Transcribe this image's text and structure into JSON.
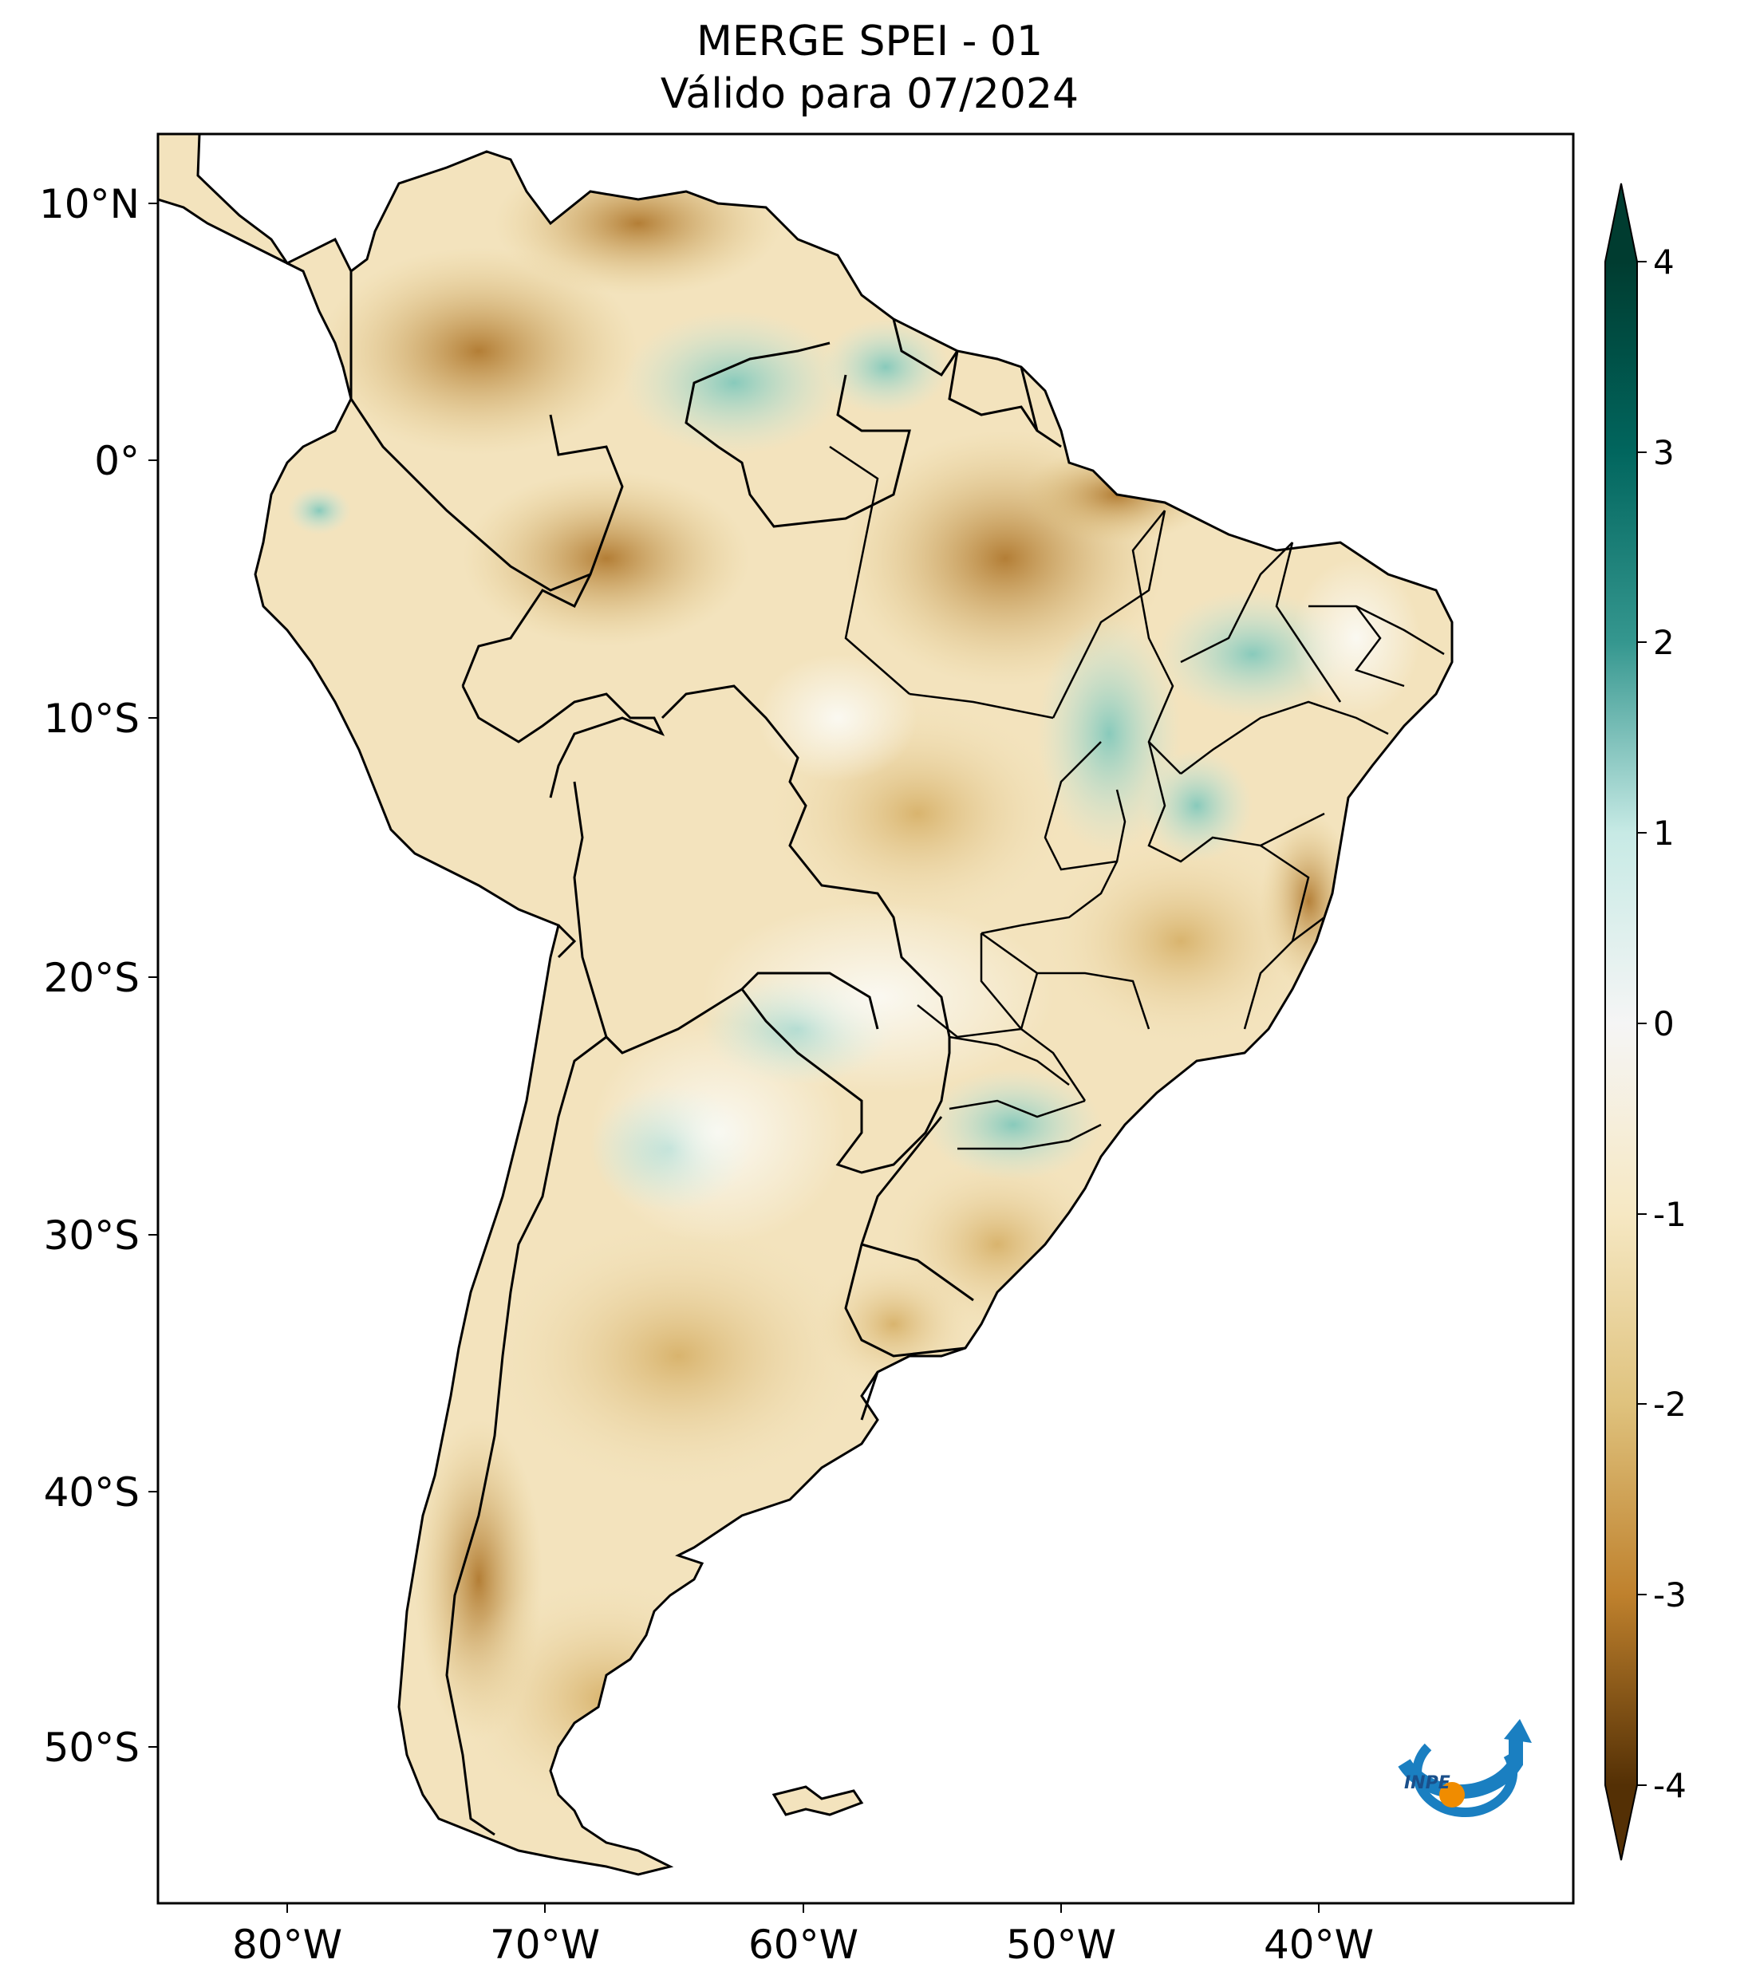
{
  "title": {
    "line1": "MERGE   SPEI - 01",
    "line2": "Válido para 07/2024"
  },
  "axes": {
    "lat_ticks": [
      "10°N",
      "0°",
      "10°S",
      "20°S",
      "30°S",
      "40°S",
      "50°S"
    ],
    "lon_ticks": [
      "80°W",
      "70°W",
      "60°W",
      "50°W",
      "40°W"
    ]
  },
  "colorbar": {
    "ticks": [
      "4",
      "3",
      "2",
      "1",
      "0",
      "-1",
      "-2",
      "-3",
      "-4"
    ],
    "colors": {
      "pos4": "#003c30",
      "pos3": "#01665e",
      "pos2": "#35978f",
      "pos1": "#c7eae5",
      "zero": "#f5f5f5",
      "neg1": "#f6e8c3",
      "neg2": "#dfc27d",
      "neg3": "#bf812d",
      "neg4": "#543005"
    }
  },
  "logo": {
    "text": "INPE"
  }
}
